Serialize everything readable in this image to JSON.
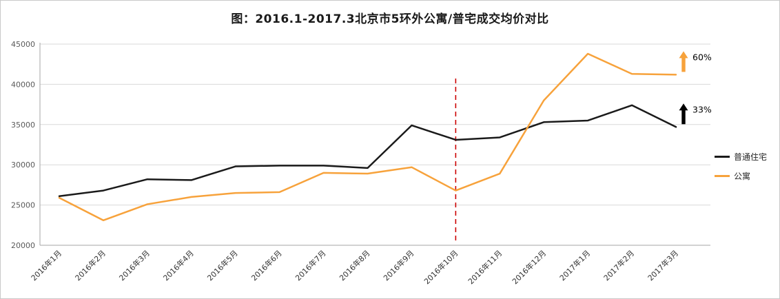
{
  "title": "图：2016.1-2017.3北京市5环外公寓/普宅成交均价对比",
  "chart_data": {
    "type": "line",
    "categories": [
      "2016年1月",
      "2016年2月",
      "2016年3月",
      "2016年4月",
      "2016年5月",
      "2016年6月",
      "2016年7月",
      "2016年8月",
      "2016年9月",
      "2016年10月",
      "2016年11月",
      "2016年12月",
      "2017年1月",
      "2017年2月",
      "2017年3月"
    ],
    "series": [
      {
        "name": "普通住宅",
        "color": "#1a1a1a",
        "values": [
          26100,
          26800,
          28200,
          28100,
          29800,
          29900,
          29900,
          29600,
          34900,
          33100,
          33400,
          35300,
          35500,
          37400,
          34700
        ]
      },
      {
        "name": "公寓",
        "color": "#F7A23B",
        "values": [
          25900,
          23100,
          25100,
          26000,
          26500,
          26600,
          29000,
          28900,
          29700,
          26800,
          28900,
          38000,
          43800,
          41300,
          41200
        ]
      }
    ],
    "ylim": [
      20000,
      45000
    ],
    "ytick_step": 5000,
    "ytick_labels": [
      "20000",
      "25000",
      "30000",
      "35000",
      "40000",
      "45000"
    ],
    "grid": true,
    "legend_position": "right",
    "reference_line": {
      "category": "2016年10月",
      "color": "#cc0000",
      "style": "dashed"
    },
    "annotations": [
      {
        "series": "公寓",
        "text": "60%",
        "arrow": "up",
        "color": "#F7A23B"
      },
      {
        "series": "普通住宅",
        "text": "33%",
        "arrow": "up",
        "color": "#000000"
      }
    ]
  }
}
